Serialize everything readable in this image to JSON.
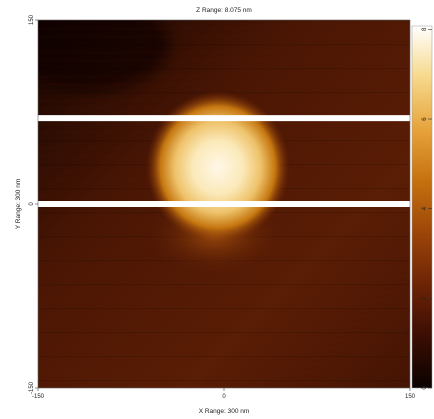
{
  "chart_data": {
    "type": "heatmap",
    "title": "Z Range: 8.075 nm",
    "xlabel": "X Range: 300 nm",
    "ylabel": "Y Range: 300 nm",
    "xlim": [
      -150,
      150
    ],
    "ylim": [
      -150,
      150
    ],
    "x_ticks": [
      "-150",
      "0",
      "150"
    ],
    "y_ticks": [
      "150",
      "0",
      "-150"
    ],
    "colorbar": {
      "range": [
        0,
        8.075
      ],
      "ticks": [
        "8",
        "6",
        "4",
        "2",
        "0"
      ],
      "colors": [
        "#0a0200",
        "#3a0d03",
        "#6b2205",
        "#9a4309",
        "#c5700f",
        "#e6a23a",
        "#f6d98c",
        "#ffffff"
      ]
    },
    "features": {
      "particle": {
        "center_x": -5,
        "center_y": 30,
        "radius_x": 58,
        "radius_y": 62,
        "peak_height": 8.0
      },
      "scan_line_gaps_y": [
        70,
        0
      ],
      "background_height_top": 1.6,
      "background_height_bottom": 1.2
    }
  }
}
